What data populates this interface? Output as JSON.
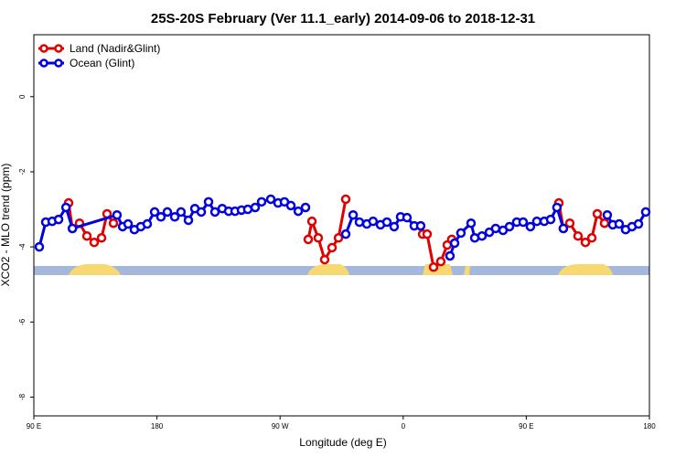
{
  "chart_data": {
    "type": "line",
    "title": "25S-20S February (Ver 11.1_early)   2014-09-06 to 2018-12-31",
    "x_label": "Longitude (deg E)",
    "y_label": "XCO2 - MLO trend (ppm)",
    "xlim": [
      90,
      540
    ],
    "xticks": [
      {
        "value": 90,
        "label": "90 E"
      },
      {
        "value": 180,
        "label": "180"
      },
      {
        "value": 270,
        "label": "90 W"
      },
      {
        "value": 360,
        "label": "0"
      },
      {
        "value": 450,
        "label": "90 E"
      },
      {
        "value": 540,
        "label": "180"
      }
    ],
    "ylim": [
      -8.5,
      1.65
    ],
    "yticks": [
      0,
      -2,
      -4,
      -6,
      -8
    ],
    "legend": "top-left",
    "series": [
      {
        "name": "Land (Nadir&Glint)",
        "color": "#e00000",
        "x": [
          115.4,
          118.2,
          123.4,
          128.8,
          134.1,
          139.5,
          143.5,
          148.2,
          null,
          290.6,
          293.3,
          297.9,
          302.6,
          308.0,
          312.7,
          318.0,
          null,
          374.2,
          377.5,
          382.2,
          387.5,
          392.2,
          395.5,
          null,
          473.8,
          477.1,
          481.8,
          487.8,
          493.2,
          497.9,
          501.9,
          507.2
        ],
        "values": [
          -2.83,
          -3.51,
          -3.37,
          -3.71,
          -3.88,
          -3.76,
          -3.12,
          -3.37,
          null,
          -3.8,
          -3.32,
          -3.76,
          -4.34,
          -4.02,
          -3.76,
          -2.73,
          null,
          -3.66,
          -3.66,
          -4.54,
          -4.39,
          -3.95,
          -3.8,
          null,
          -2.83,
          -3.51,
          -3.37,
          -3.71,
          -3.88,
          -3.76,
          -3.12,
          -3.37
        ]
      },
      {
        "name": "Ocean (Glint)",
        "color": "#0000e0",
        "x": [
          94.0,
          98.7,
          103.4,
          108.1,
          113.5,
          118.2,
          150.8,
          154.9,
          158.9,
          163.5,
          168.2,
          172.9,
          178.3,
          182.9,
          187.6,
          193.0,
          197.6,
          203.0,
          207.7,
          212.4,
          217.7,
          222.4,
          227.7,
          232.4,
          237.1,
          241.8,
          246.4,
          251.8,
          256.5,
          263.2,
          268.5,
          273.2,
          277.9,
          283.3,
          288.6,
          null,
          318.0,
          323.4,
          328.0,
          333.4,
          338.0,
          343.4,
          348.1,
          353.4,
          358.1,
          362.8,
          368.1,
          372.8,
          null,
          394.2,
          397.6,
          402.2,
          409.6,
          412.3,
          417.6,
          423.0,
          427.6,
          433.0,
          437.7,
          443.0,
          447.7,
          453.0,
          457.7,
          463.1,
          467.8,
          472.4,
          477.1,
          null,
          509.2,
          513.2,
          517.9,
          522.6,
          527.3,
          532.0,
          537.3
        ],
        "values": [
          -4.0,
          -3.34,
          -3.32,
          -3.27,
          -2.95,
          -3.51,
          -3.15,
          -3.46,
          -3.39,
          -3.54,
          -3.46,
          -3.39,
          -3.07,
          -3.2,
          -3.07,
          -3.2,
          -3.07,
          -3.29,
          -2.98,
          -3.07,
          -2.8,
          -3.07,
          -2.98,
          -3.05,
          -3.05,
          -3.02,
          -3.0,
          -2.95,
          -2.8,
          -2.73,
          -2.83,
          -2.8,
          -2.9,
          -3.05,
          -2.95,
          null,
          -3.66,
          -3.15,
          -3.34,
          -3.39,
          -3.32,
          -3.41,
          -3.34,
          -3.46,
          -3.2,
          -3.22,
          -3.44,
          -3.44,
          null,
          -4.24,
          -3.9,
          -3.63,
          -3.37,
          -3.76,
          -3.71,
          -3.61,
          -3.51,
          -3.56,
          -3.46,
          -3.34,
          -3.34,
          -3.46,
          -3.32,
          -3.32,
          -3.27,
          -2.95,
          -3.51,
          null,
          -3.15,
          -3.41,
          -3.39,
          -3.54,
          -3.46,
          -3.39,
          -3.07
        ]
      }
    ]
  }
}
